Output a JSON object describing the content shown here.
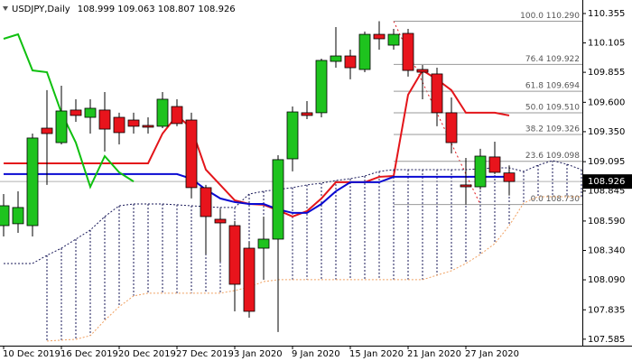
{
  "chart_data": {
    "type": "candlestick",
    "title": "USDJPY,Daily",
    "subtitle": "108.999 109.063 108.807 108.926",
    "categories": [
      "10 Dec 2019",
      null,
      null,
      null,
      "16 Dec 2019",
      null,
      null,
      null,
      "20 Dec 2019",
      null,
      null,
      null,
      "27 Dec 2019",
      null,
      null,
      null,
      "3 Jan 2020",
      null,
      null,
      null,
      "9 Jan 2020",
      null,
      null,
      null,
      "15 Jan 2020",
      null,
      null,
      null,
      "21 Jan 2020",
      null,
      null,
      null,
      "27 Jan 2020",
      null,
      null,
      null,
      null,
      null,
      null,
      null,
      null
    ],
    "open": [
      108.551,
      108.567,
      108.551,
      109.38,
      109.257,
      109.534,
      109.472,
      109.534,
      109.472,
      109.449,
      109.403,
      109.396,
      109.564,
      109.449,
      108.874,
      108.605,
      108.551,
      108.359,
      108.359,
      108.436,
      109.119,
      109.511,
      109.511,
      109.948,
      109.994,
      109.879,
      110.178,
      110.086,
      110.186,
      109.879,
      109.841,
      109.511,
      108.897,
      108.881,
      109.135,
      108.999,
      null,
      null,
      null,
      null,
      null
    ],
    "high": [
      108.82,
      108.843,
      109.334,
      109.703,
      109.741,
      109.626,
      109.626,
      109.687,
      109.511,
      109.511,
      109.472,
      109.687,
      109.626,
      109.511,
      108.897,
      108.689,
      108.59,
      108.413,
      108.628,
      109.15,
      109.564,
      109.61,
      109.971,
      110.24,
      110.048,
      110.201,
      110.29,
      110.224,
      110.224,
      109.917,
      109.894,
      109.641,
      109.127,
      109.204,
      109.265,
      109.063,
      null,
      null,
      null,
      null,
      null
    ],
    "low": [
      108.459,
      108.49,
      108.459,
      108.897,
      109.242,
      109.434,
      109.334,
      109.181,
      109.242,
      109.334,
      109.334,
      109.38,
      109.396,
      108.782,
      108.306,
      108.244,
      107.822,
      107.768,
      108.091,
      107.646,
      109.012,
      109.457,
      109.472,
      109.894,
      109.795,
      109.856,
      110.048,
      110.048,
      109.818,
      109.626,
      109.396,
      109.165,
      108.73,
      108.858,
      108.989,
      108.807,
      null,
      null,
      null,
      null,
      null
    ],
    "close": [
      108.72,
      108.705,
      109.296,
      109.334,
      109.526,
      109.488,
      109.549,
      109.372,
      109.342,
      109.396,
      109.388,
      109.626,
      109.419,
      108.874,
      108.628,
      108.574,
      108.052,
      107.822,
      108.436,
      109.112,
      109.518,
      109.488,
      109.956,
      109.994,
      109.894,
      110.178,
      110.14,
      110.178,
      109.871,
      109.856,
      109.511,
      109.257,
      108.881,
      109.142,
      109.004,
      108.926,
      null,
      null,
      null,
      null,
      null
    ],
    "up_color": "#1ec31e",
    "down_color": "#e8141c",
    "lines": [
      {
        "color": "#e3151a",
        "dash": false,
        "values": [
          109.081,
          109.081,
          109.081,
          109.081,
          109.081,
          109.081,
          109.081,
          109.081,
          109.081,
          109.081,
          109.081,
          109.334,
          109.488,
          109.38,
          109.027,
          108.897,
          108.766,
          108.735,
          108.728,
          108.682,
          108.628,
          108.674,
          108.782,
          108.92,
          108.92,
          108.92,
          108.966,
          108.973,
          109.664,
          109.871,
          109.795,
          109.703,
          109.511,
          109.511,
          109.511,
          109.488,
          null,
          null,
          null,
          null,
          null
        ]
      },
      {
        "color": "#0a0ad2",
        "dash": false,
        "values": [
          108.989,
          108.989,
          108.989,
          108.989,
          108.989,
          108.989,
          108.989,
          108.989,
          108.989,
          108.989,
          108.989,
          108.989,
          108.989,
          108.95,
          108.858,
          108.782,
          108.751,
          108.735,
          108.735,
          108.689,
          108.659,
          108.659,
          108.735,
          108.843,
          108.92,
          108.92,
          108.92,
          108.966,
          108.966,
          108.966,
          108.966,
          108.966,
          108.966,
          108.966,
          108.966,
          108.966,
          null,
          null,
          null,
          null,
          null
        ]
      },
      {
        "color": "#10c010",
        "dash": false,
        "values": [
          110.14,
          110.178,
          109.871,
          109.856,
          109.511,
          109.257,
          108.881,
          109.142,
          109.004,
          108.926,
          null,
          null,
          null,
          null,
          null,
          null,
          null,
          null,
          null,
          null,
          null,
          null,
          null,
          null,
          null,
          null,
          null,
          null,
          null,
          null,
          null,
          null,
          null,
          null,
          null,
          null,
          null,
          null,
          null,
          null,
          null
        ]
      },
      {
        "color": "#1a1a5a",
        "dash": true,
        "values": [
          108.229,
          108.229,
          108.229,
          108.298,
          108.359,
          108.436,
          108.513,
          108.628,
          108.72,
          108.735,
          108.735,
          108.735,
          108.728,
          108.72,
          108.712,
          108.705,
          108.705,
          108.82,
          108.843,
          108.858,
          108.874,
          108.897,
          108.912,
          108.935,
          108.95,
          108.973,
          109.012,
          109.027,
          109.027,
          109.027,
          109.027,
          109.027,
          109.027,
          109.035,
          109.042,
          109.042,
          109.012,
          109.065,
          109.104,
          109.073,
          109.027
        ]
      },
      {
        "color": "#f0a060",
        "dash": true,
        "values": [
          null,
          null,
          null,
          107.569,
          107.577,
          107.584,
          107.615,
          107.745,
          107.861,
          107.953,
          107.976,
          107.976,
          107.976,
          107.976,
          107.976,
          107.976,
          107.999,
          108.029,
          108.075,
          108.091,
          108.091,
          108.091,
          108.091,
          108.091,
          108.091,
          108.091,
          108.091,
          108.091,
          108.091,
          108.091,
          108.129,
          108.167,
          108.229,
          108.306,
          108.398,
          108.551,
          108.743,
          108.797,
          108.797,
          108.797,
          108.797
        ]
      }
    ],
    "fib_levels": [
      {
        "value": 110.29,
        "label": "100.0 110.290"
      },
      {
        "value": 109.922,
        "label": "76.4 109.922"
      },
      {
        "value": 109.694,
        "label": "61.8 109.694"
      },
      {
        "value": 109.51,
        "label": "50.0 109.510"
      },
      {
        "value": 109.326,
        "label": "38.2 109.326"
      },
      {
        "value": 109.098,
        "label": "23.6 109.098"
      },
      {
        "value": 108.73,
        "label": "0.0 108.730"
      }
    ],
    "last_price": 108.926,
    "ylim": [
      107.53,
      110.47
    ],
    "yticks": [
      110.355,
      110.105,
      109.855,
      {
        "value": 109.6,
        "label": "109.600"
      },
      {
        "value": 109.35,
        "label": "109.350"
      },
      109.095,
      108.845,
      {
        "value": 108.59,
        "label": "108.590"
      },
      {
        "value": 108.34,
        "label": "108.340"
      },
      {
        "value": 108.09,
        "label": "108.090"
      },
      107.835,
      107.585
    ]
  }
}
